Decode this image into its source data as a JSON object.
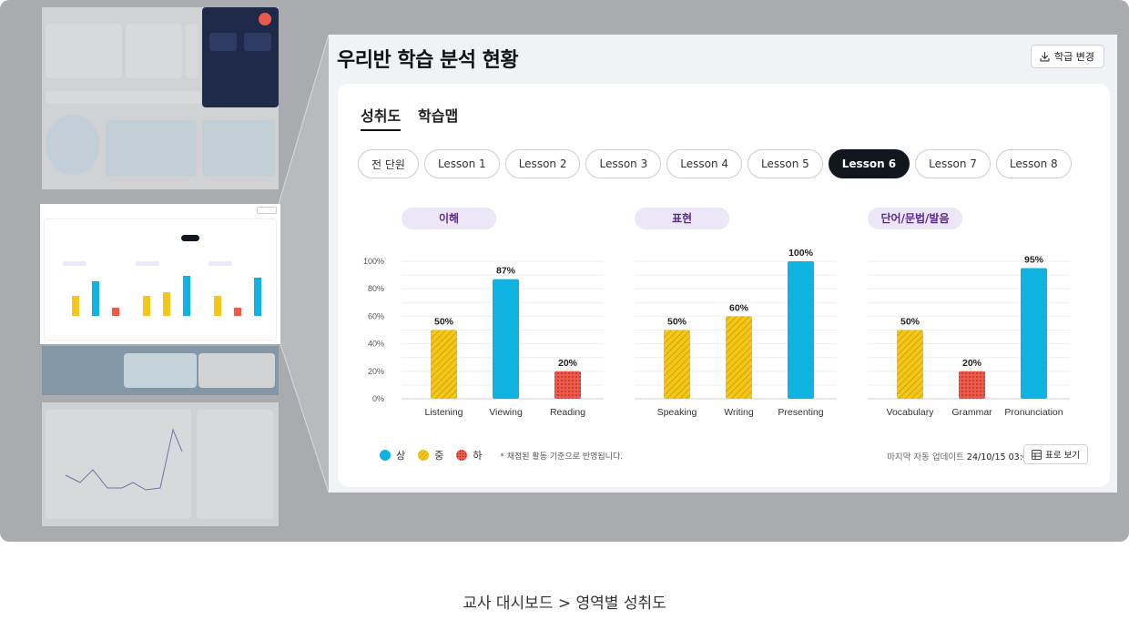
{
  "main": {
    "title": "우리반 학습 분석 현황",
    "class_change_label": "학급 변경",
    "tabs": [
      {
        "label": "성취도",
        "active": true
      },
      {
        "label": "학습맵",
        "active": false
      }
    ],
    "lessons": [
      "전 단원",
      "Lesson 1",
      "Lesson 2",
      "Lesson 3",
      "Lesson 4",
      "Lesson 5",
      "Lesson 6",
      "Lesson 7",
      "Lesson 8"
    ],
    "selected_lesson": "Lesson 6",
    "legend": {
      "items": [
        {
          "label": "상",
          "color": "#0fb3e2"
        },
        {
          "label": "중",
          "color": "#f5c518"
        },
        {
          "label": "하",
          "color": "#ef5a4a"
        }
      ],
      "note": "* 채점된 활동 기준으로 반영됩니다."
    },
    "update_label": "마지막 자동 업데이트",
    "update_time": "24/10/15 03:01",
    "table_view_label": "표로 보기"
  },
  "chart_data": [
    {
      "type": "bar",
      "title": "이해",
      "categories": [
        "Listening",
        "Viewing",
        "Reading"
      ],
      "values": [
        50,
        87,
        20
      ],
      "levels": [
        "중",
        "상",
        "하"
      ],
      "ylim": [
        0,
        100
      ],
      "yticks": [
        "100%",
        "80%",
        "60%",
        "40%",
        "20%",
        "0%"
      ]
    },
    {
      "type": "bar",
      "title": "표현",
      "categories": [
        "Speaking",
        "Writing",
        "Presenting"
      ],
      "values": [
        50,
        60,
        100
      ],
      "levels": [
        "중",
        "중",
        "상"
      ],
      "ylim": [
        0,
        100
      ]
    },
    {
      "type": "bar",
      "title": "단어/문법/발음",
      "categories": [
        "Vocabulary",
        "Grammar",
        "Pronunciation"
      ],
      "values": [
        50,
        20,
        95
      ],
      "levels": [
        "중",
        "하",
        "상"
      ],
      "ylim": [
        0,
        100
      ]
    }
  ],
  "caption": "교사 대시보드 > 영역별 성취도"
}
